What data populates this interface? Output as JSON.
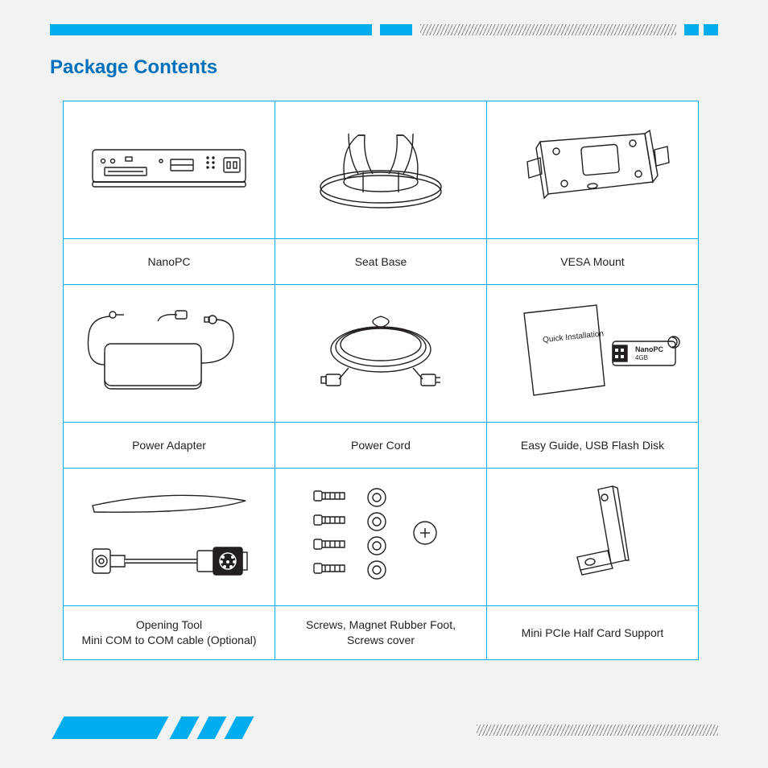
{
  "colors": {
    "accent": "#00aeef",
    "titleColor": "#0071bc",
    "textColor": "#231f20",
    "pageBg": "#f1f2f2",
    "hatchDark": "#8a8c8e",
    "tableBorder": "#00aeef",
    "cellBg": "#ffffff",
    "lineArt": "#231f20"
  },
  "page": {
    "title": "Package Contents"
  },
  "items": [
    {
      "label": "NanoPC"
    },
    {
      "label": "Seat Base"
    },
    {
      "label": "VESA Mount"
    },
    {
      "label": "Power Adapter"
    },
    {
      "label": "Power Cord"
    },
    {
      "label": "Easy Guide, USB Flash Disk"
    },
    {
      "label": "Opening Tool\nMini COM to COM cable (Optional)"
    },
    {
      "label": "Screws, Magnet Rubber Foot,\nScrews cover"
    },
    {
      "label": "Mini PCIe Half Card Support"
    }
  ],
  "svgText": {
    "quickInstall": "Quick Installation",
    "usbLabel1": "NanoPC",
    "usbLabel2": "4GB"
  },
  "layout": {
    "pageWidth": 954,
    "pageHeight": 954,
    "tableCols": 3,
    "tableRows": 3,
    "imageRowHeight": 168,
    "labelRowHeight": 48
  }
}
